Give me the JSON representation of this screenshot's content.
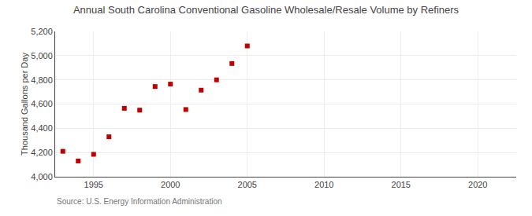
{
  "chart_data": {
    "type": "scatter",
    "title": "Annual South Carolina Conventional Gasoline Wholesale/Resale Volume by Refiners",
    "ylabel": "Thousand Gallons per Day",
    "annotation": "Source: U.S. Energy Information Administration",
    "x": [
      1993,
      1994,
      1995,
      1996,
      1997,
      1998,
      1999,
      2000,
      2001,
      2002,
      2003,
      2004,
      2005
    ],
    "values": [
      4210,
      4130,
      4185,
      4330,
      4565,
      4550,
      4745,
      4765,
      4555,
      4715,
      4800,
      4935,
      5080
    ],
    "color": "#c00000",
    "marker": "square",
    "xlim": [
      1992.5,
      2022.5
    ],
    "ylim": [
      4000,
      5200
    ],
    "xticks": [
      1995,
      2000,
      2005,
      2010,
      2015,
      2020
    ],
    "yticks": [
      {
        "value": 4000,
        "label": "4,000"
      },
      {
        "value": 4200,
        "label": "4,200"
      },
      {
        "value": 4400,
        "label": "4,400"
      },
      {
        "value": 4600,
        "label": "4,600"
      },
      {
        "value": 4800,
        "label": "4,800"
      },
      {
        "value": 5000,
        "label": "5,000"
      },
      {
        "value": 5200,
        "label": "5,200"
      }
    ],
    "grid": true
  }
}
